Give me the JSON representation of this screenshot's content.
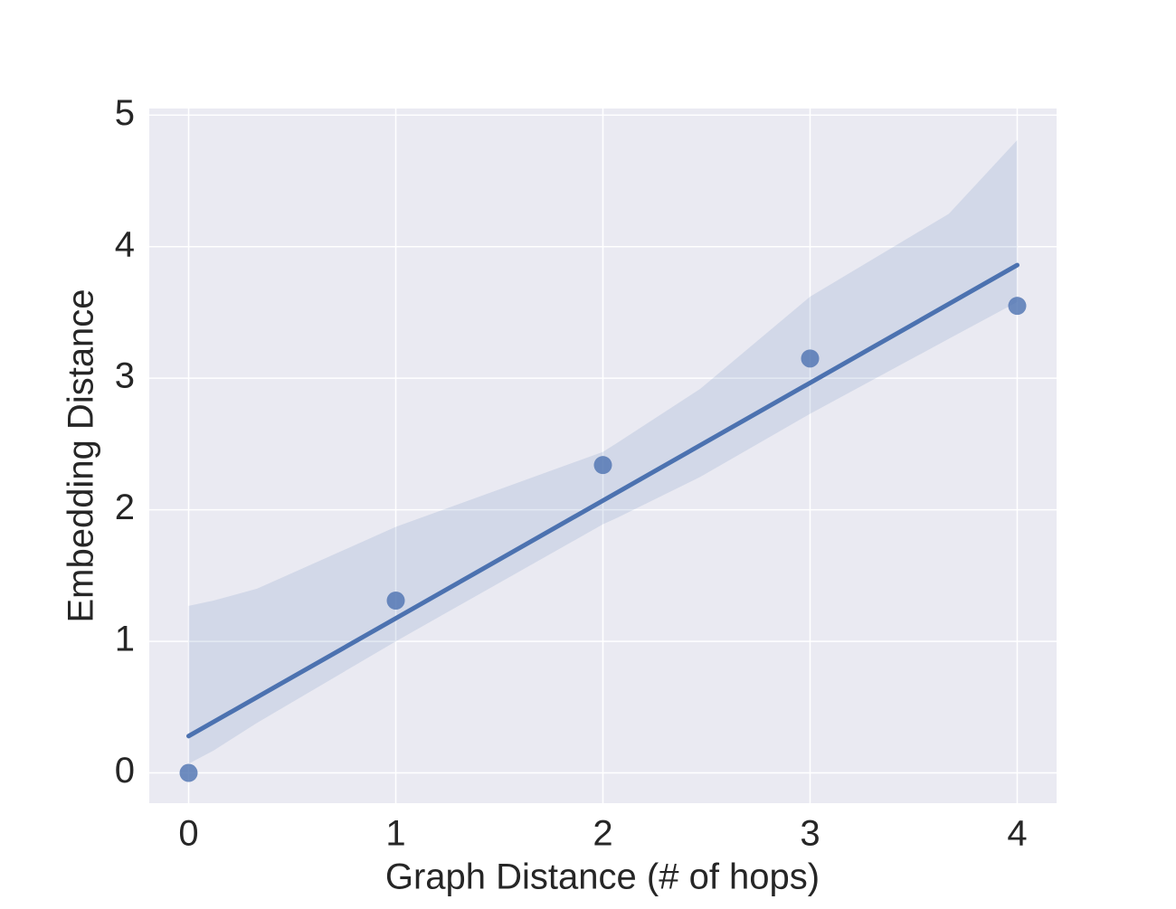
{
  "chart_data": {
    "type": "regplot",
    "xlabel": "Graph Distance (# of hops)",
    "ylabel": "Embedding Distance",
    "x": [
      0,
      1,
      2,
      3,
      4
    ],
    "values": [
      0,
      1.31,
      2.34,
      3.15,
      3.55
    ],
    "color": "#4c72b0",
    "fit": {
      "x": [
        0,
        4
      ],
      "values": [
        0.28,
        3.86
      ]
    },
    "band": {
      "x": [
        0,
        0.12,
        0.33,
        1,
        2,
        2.07,
        2.47,
        3,
        3.67,
        4
      ],
      "upper": [
        1.27,
        1.31,
        1.4,
        1.87,
        2.44,
        2.51,
        2.92,
        3.62,
        4.25,
        4.81
      ],
      "lower": [
        0.07,
        0.17,
        0.38,
        1.0,
        1.89,
        1.94,
        2.25,
        2.73,
        3.3,
        3.58
      ]
    },
    "xlim": [
      -0.19,
      4.19
    ],
    "ylim": [
      -0.23,
      5.05
    ],
    "xticks": [
      0,
      1,
      2,
      3,
      4
    ],
    "yticks": [
      0,
      1,
      2,
      3,
      4,
      5
    ],
    "grid": true
  }
}
